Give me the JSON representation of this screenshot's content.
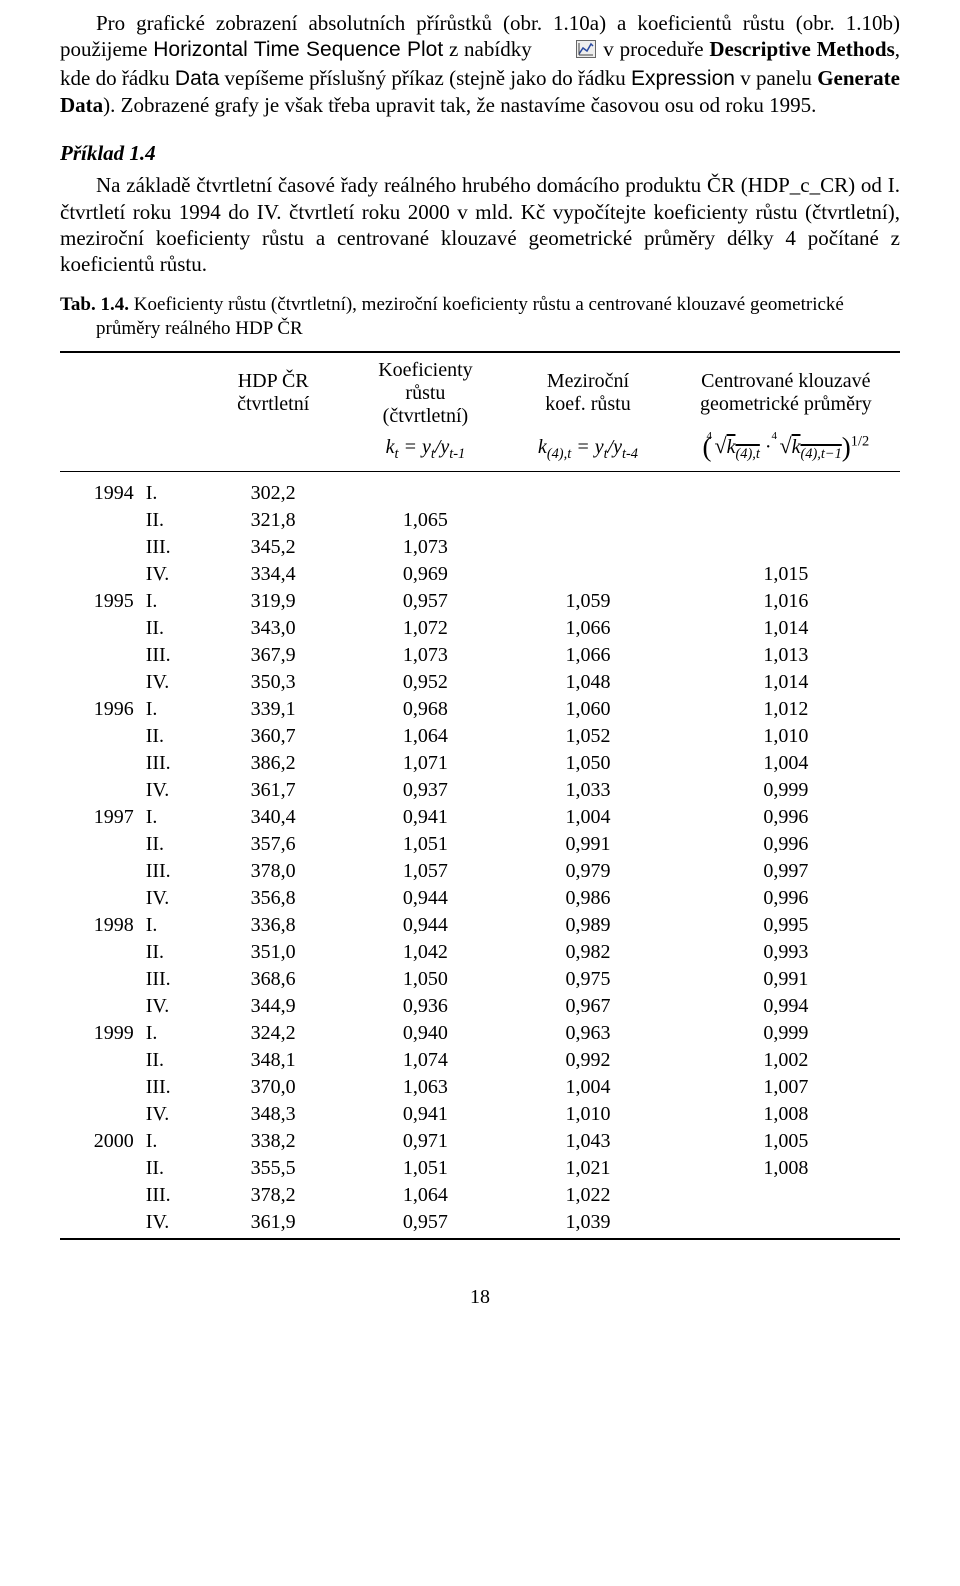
{
  "para1_a": "Pro grafické zobrazení absolutních přírůstků (obr. 1.10a) a koeficientů růstu (obr. 1.10b) použijeme ",
  "para1_b": "Horizontal Time Sequence Plot",
  "para1_c": " z nabídky ",
  "para1_d": " v proceduře ",
  "para1_e": "Descriptive Methods",
  "para1_f": ", kde do řádku ",
  "para1_g": "Data",
  "para1_h": " vepíšeme příslušný příkaz (stejně jako do řádku ",
  "para1_i": "Expression",
  "para1_j": " v panelu ",
  "para1_k": "Generate Data",
  "para1_l": "). Zobrazené grafy je však třeba upravit tak, že nastavíme časovou osu od roku 1995.",
  "heading_example": "Příklad 1.4",
  "para2_a": "Na základě čtvrtletní časové řady reálného hrubého domácího produktu ČR (HDP_c_CR) od I. čtvrtletí roku 1994 do IV. čtvrtletí roku 2000 v mld. Kč vypočítejte koeficienty růstu (čtvrtletní), meziroční koeficienty růstu a centrované klouzavé geometrické průměry délky 4 počítané z koeficientů růstu.",
  "tab_caption_a": "Tab. 1.4.",
  "tab_caption_b": " Koeficienty růstu (čtvrtletní), meziroční koeficienty růstu a centrované klouzavé geometrické průměry reálného HDP ČR",
  "head": {
    "c1a": "HDP ČR",
    "c1b": "čtvrtletní",
    "c2a": "Koeficienty",
    "c2b": "růstu",
    "c2c": "(čtvrtletní)",
    "c3a": "Meziroční",
    "c3b": "koef. růstu",
    "c4a": "Centrované klouzavé",
    "c4b": "geometrické průměry",
    "f2_a": "k",
    "f2_b": "t",
    "f2_c": " = y",
    "f2_d": "t",
    "f2_e": "/y",
    "f2_f": "t-1",
    "f3_a": "k",
    "f3_b": "(4),t",
    "f3_c": " = y",
    "f3_d": "t",
    "f3_e": "/y",
    "f3_f": "t-4",
    "f4_k": "k",
    "f4_s1": "(4),t",
    "f4_dot": " · ",
    "f4_s2": "(4),t−1",
    "f4_exp": "1/2"
  },
  "rows": [
    {
      "y": "1994",
      "q": "I.",
      "a": "302,2",
      "b": "",
      "c": "",
      "d": ""
    },
    {
      "y": "",
      "q": "II.",
      "a": "321,8",
      "b": "1,065",
      "c": "",
      "d": ""
    },
    {
      "y": "",
      "q": "III.",
      "a": "345,2",
      "b": "1,073",
      "c": "",
      "d": ""
    },
    {
      "y": "",
      "q": "IV.",
      "a": "334,4",
      "b": "0,969",
      "c": "",
      "d": "1,015"
    },
    {
      "y": "1995",
      "q": "I.",
      "a": "319,9",
      "b": "0,957",
      "c": "1,059",
      "d": "1,016"
    },
    {
      "y": "",
      "q": "II.",
      "a": "343,0",
      "b": "1,072",
      "c": "1,066",
      "d": "1,014"
    },
    {
      "y": "",
      "q": "III.",
      "a": "367,9",
      "b": "1,073",
      "c": "1,066",
      "d": "1,013"
    },
    {
      "y": "",
      "q": "IV.",
      "a": "350,3",
      "b": "0,952",
      "c": "1,048",
      "d": "1,014"
    },
    {
      "y": "1996",
      "q": "I.",
      "a": "339,1",
      "b": "0,968",
      "c": "1,060",
      "d": "1,012"
    },
    {
      "y": "",
      "q": "II.",
      "a": "360,7",
      "b": "1,064",
      "c": "1,052",
      "d": "1,010"
    },
    {
      "y": "",
      "q": "III.",
      "a": "386,2",
      "b": "1,071",
      "c": "1,050",
      "d": "1,004"
    },
    {
      "y": "",
      "q": "IV.",
      "a": "361,7",
      "b": "0,937",
      "c": "1,033",
      "d": "0,999"
    },
    {
      "y": "1997",
      "q": "I.",
      "a": "340,4",
      "b": "0,941",
      "c": "1,004",
      "d": "0,996"
    },
    {
      "y": "",
      "q": "II.",
      "a": "357,6",
      "b": "1,051",
      "c": "0,991",
      "d": "0,996"
    },
    {
      "y": "",
      "q": "III.",
      "a": "378,0",
      "b": "1,057",
      "c": "0,979",
      "d": "0,997"
    },
    {
      "y": "",
      "q": "IV.",
      "a": "356,8",
      "b": "0,944",
      "c": "0,986",
      "d": "0,996"
    },
    {
      "y": "1998",
      "q": "I.",
      "a": "336,8",
      "b": "0,944",
      "c": "0,989",
      "d": "0,995"
    },
    {
      "y": "",
      "q": "II.",
      "a": "351,0",
      "b": "1,042",
      "c": "0,982",
      "d": "0,993"
    },
    {
      "y": "",
      "q": "III.",
      "a": "368,6",
      "b": "1,050",
      "c": "0,975",
      "d": "0,991"
    },
    {
      "y": "",
      "q": "IV.",
      "a": "344,9",
      "b": "0,936",
      "c": "0,967",
      "d": "0,994"
    },
    {
      "y": "1999",
      "q": "I.",
      "a": "324,2",
      "b": "0,940",
      "c": "0,963",
      "d": "0,999"
    },
    {
      "y": "",
      "q": "II.",
      "a": "348,1",
      "b": "1,074",
      "c": "0,992",
      "d": "1,002"
    },
    {
      "y": "",
      "q": "III.",
      "a": "370,0",
      "b": "1,063",
      "c": "1,004",
      "d": "1,007"
    },
    {
      "y": "",
      "q": "IV.",
      "a": "348,3",
      "b": "0,941",
      "c": "1,010",
      "d": "1,008"
    },
    {
      "y": "2000",
      "q": "I.",
      "a": "338,2",
      "b": "0,971",
      "c": "1,043",
      "d": "1,005"
    },
    {
      "y": "",
      "q": "II.",
      "a": "355,5",
      "b": "1,051",
      "c": "1,021",
      "d": "1,008"
    },
    {
      "y": "",
      "q": "III.",
      "a": "378,2",
      "b": "1,064",
      "c": "1,022",
      "d": ""
    },
    {
      "y": "",
      "q": "IV.",
      "a": "361,9",
      "b": "0,957",
      "c": "1,039",
      "d": ""
    }
  ],
  "page_number": "18"
}
